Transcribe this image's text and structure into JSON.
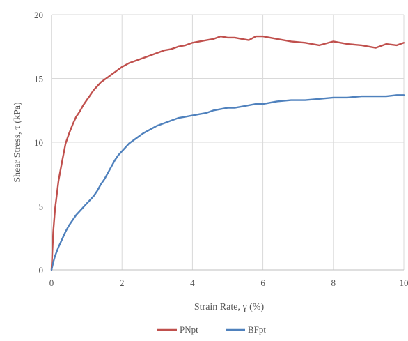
{
  "chart_data": {
    "type": "line",
    "xlabel": "Strain Rate, γ (%)",
    "ylabel": "Shear Stress, τ (kPa)",
    "xlim": [
      0,
      10
    ],
    "ylim": [
      0,
      20
    ],
    "x_ticks": [
      0,
      2,
      4,
      6,
      8,
      10
    ],
    "y_ticks": [
      0,
      5,
      10,
      15,
      20
    ],
    "x_tick_labels": [
      "0",
      "2",
      "4",
      "6",
      "8",
      "10"
    ],
    "y_tick_labels": [
      "0",
      "5",
      "10",
      "15",
      "20"
    ],
    "grid": "vertical and horizontal gridlines at each major tick",
    "legend_position": "bottom-center",
    "series": [
      {
        "name": "PNpt",
        "color": "#c0504d",
        "x": [
          0,
          0.05,
          0.1,
          0.2,
          0.3,
          0.4,
          0.5,
          0.6,
          0.7,
          0.8,
          0.9,
          1.0,
          1.1,
          1.2,
          1.3,
          1.4,
          1.5,
          1.6,
          1.7,
          1.8,
          1.9,
          2.0,
          2.2,
          2.4,
          2.6,
          2.8,
          3.0,
          3.2,
          3.4,
          3.6,
          3.8,
          4.0,
          4.2,
          4.4,
          4.6,
          4.8,
          5.0,
          5.2,
          5.4,
          5.6,
          5.8,
          6.0,
          6.4,
          6.8,
          7.2,
          7.6,
          8.0,
          8.4,
          8.8,
          9.2,
          9.5,
          9.8,
          10.0
        ],
        "y": [
          0,
          3.0,
          4.8,
          7.0,
          8.5,
          9.9,
          10.7,
          11.4,
          12.0,
          12.4,
          12.9,
          13.3,
          13.7,
          14.1,
          14.4,
          14.7,
          14.9,
          15.1,
          15.3,
          15.5,
          15.7,
          15.9,
          16.2,
          16.4,
          16.6,
          16.8,
          17.0,
          17.2,
          17.3,
          17.5,
          17.6,
          17.8,
          17.9,
          18.0,
          18.1,
          18.3,
          18.2,
          18.2,
          18.1,
          18.0,
          18.3,
          18.3,
          18.1,
          17.9,
          17.8,
          17.6,
          17.9,
          17.7,
          17.6,
          17.4,
          17.7,
          17.6,
          17.8
        ]
      },
      {
        "name": "BFpt",
        "color": "#4f81bd",
        "x": [
          0,
          0.05,
          0.1,
          0.2,
          0.3,
          0.4,
          0.5,
          0.6,
          0.7,
          0.8,
          0.9,
          1.0,
          1.1,
          1.2,
          1.3,
          1.4,
          1.5,
          1.6,
          1.7,
          1.8,
          1.9,
          2.0,
          2.2,
          2.4,
          2.6,
          2.8,
          3.0,
          3.2,
          3.4,
          3.6,
          3.8,
          4.0,
          4.2,
          4.4,
          4.6,
          4.8,
          5.0,
          5.2,
          5.4,
          5.6,
          5.8,
          6.0,
          6.4,
          6.8,
          7.2,
          7.6,
          8.0,
          8.4,
          8.8,
          9.2,
          9.5,
          9.8,
          10.0
        ],
        "y": [
          0,
          0.6,
          1.1,
          1.8,
          2.4,
          3.0,
          3.5,
          3.9,
          4.3,
          4.6,
          4.9,
          5.2,
          5.5,
          5.8,
          6.2,
          6.7,
          7.1,
          7.6,
          8.1,
          8.6,
          9.0,
          9.3,
          9.9,
          10.3,
          10.7,
          11.0,
          11.3,
          11.5,
          11.7,
          11.9,
          12.0,
          12.1,
          12.2,
          12.3,
          12.5,
          12.6,
          12.7,
          12.7,
          12.8,
          12.9,
          13.0,
          13.0,
          13.2,
          13.3,
          13.3,
          13.4,
          13.5,
          13.5,
          13.6,
          13.6,
          13.6,
          13.7,
          13.7
        ]
      }
    ]
  }
}
